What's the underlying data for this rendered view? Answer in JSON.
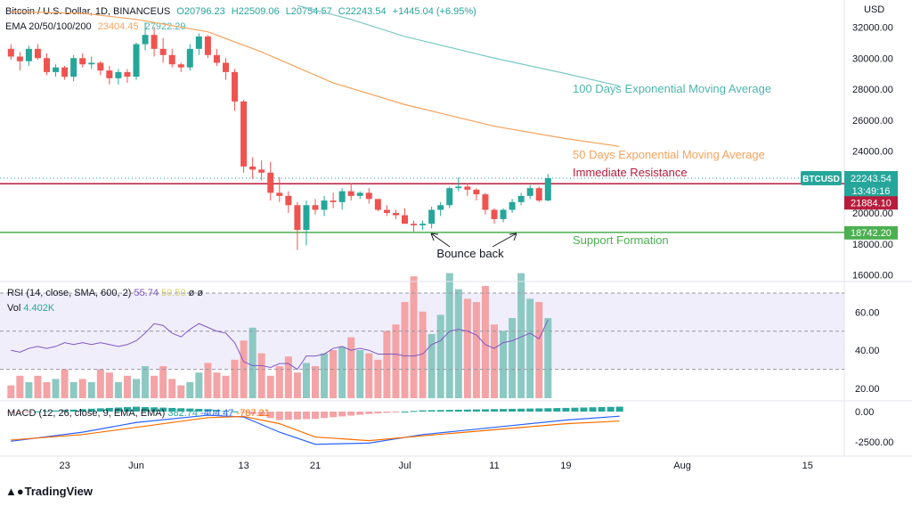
{
  "header": {
    "title": "Bitcoin / U.S. Dollar, 1D, BINANCEUS",
    "ohlc": {
      "o": "O20796.23",
      "h": "H22509.06",
      "l": "L20754.57",
      "c": "C22243.54",
      "chg": "+1445.04 (+6.95%)"
    },
    "ema_label": "EMA 20/50/100/200",
    "ema_values": [
      "23404.45",
      "27922.29"
    ]
  },
  "currency": "USD",
  "price_axis": {
    "ticks": [
      "32000.00",
      "30000.00",
      "28000.00",
      "26000.00",
      "24000.00",
      "22000.00",
      "20000.00",
      "18000.00",
      "16000.00"
    ],
    "tick_values": [
      32000,
      30000,
      28000,
      26000,
      24000,
      22000,
      20000,
      18000,
      16000
    ]
  },
  "price_tags": {
    "symbol": "BTCUSD",
    "last": "22243.54",
    "countdown": "13:49:16",
    "resistance": "21884.10",
    "support": "18742.20"
  },
  "levels": {
    "resistance": 21884.1,
    "support": 18742.2
  },
  "annotations": {
    "ema100": "100 Days Exponential Moving Average",
    "ema50": "50 Days Exponential Moving Average",
    "resistance": "Immediate Resistance",
    "support": "Support Formation",
    "bounce": "Bounce back"
  },
  "rsi_panel": {
    "label": "RSI (14, close, SMA, 600, 2)",
    "v1": "55.74",
    "v2": "50.50",
    "v3": "ø",
    "v4": "ø",
    "vol_label": "Vol",
    "vol_value": "4.402K",
    "ticks": [
      "60.00",
      "40.00",
      "20.00"
    ],
    "tick_values": [
      60,
      40,
      20
    ]
  },
  "macd_panel": {
    "label": "MACD (12, 26, close, 9, EMA, EMA)",
    "v1": "382.74",
    "v2": "-404.47",
    "v3": "-787.21",
    "ticks": [
      "0.00",
      "-2500.00"
    ],
    "tick_values": [
      0,
      -2500
    ]
  },
  "time_axis": {
    "labels": [
      "23",
      "Jun",
      "13",
      "21",
      "Jul",
      "11",
      "19",
      "Aug",
      "15"
    ],
    "day_index": [
      -8,
      0,
      12,
      20,
      30,
      40,
      48,
      61,
      75
    ]
  },
  "colors": {
    "up": "#26a69a",
    "down": "#ef5350",
    "resistance": "#b71c3c",
    "support": "#4caf50",
    "ema50": "#f7a35c",
    "ema100": "#7ec8c8",
    "rsi": "#7e57c2",
    "macd": "#2962ff",
    "signal": "#ff6d00",
    "vol_up": "#8cc9c3",
    "vol_down": "#f4a3a6"
  },
  "brand": "TradingView",
  "chart_data": [
    {
      "type": "candlestick",
      "title": "Bitcoin / U.S. Dollar, 1D, BINANCEUS",
      "x_start_day": -14,
      "ohlc": [
        [
          30600,
          30900,
          29900,
          30100
        ],
        [
          30100,
          30400,
          29200,
          29800
        ],
        [
          29800,
          30800,
          29500,
          30600
        ],
        [
          30600,
          30900,
          29900,
          30000
        ],
        [
          30000,
          30300,
          28900,
          29100
        ],
        [
          29100,
          29600,
          28800,
          29400
        ],
        [
          29400,
          29500,
          28600,
          28800
        ],
        [
          28800,
          30200,
          28500,
          30000
        ],
        [
          30000,
          30300,
          29400,
          29600
        ],
        [
          29600,
          30100,
          29300,
          29700
        ],
        [
          29700,
          29800,
          28900,
          29200
        ],
        [
          29200,
          29500,
          28300,
          28700
        ],
        [
          28700,
          29300,
          28300,
          29100
        ],
        [
          29100,
          29300,
          28400,
          28800
        ],
        [
          28800,
          31000,
          28600,
          30900
        ],
        [
          30900,
          32300,
          30500,
          31500
        ],
        [
          31500,
          32000,
          30100,
          30600
        ],
        [
          30600,
          31300,
          29700,
          30200
        ],
        [
          30200,
          30600,
          29400,
          29600
        ],
        [
          29600,
          29700,
          29100,
          29400
        ],
        [
          29400,
          30900,
          29200,
          30600
        ],
        [
          30600,
          31600,
          30200,
          31400
        ],
        [
          31400,
          31500,
          30000,
          30200
        ],
        [
          30200,
          30600,
          29500,
          29700
        ],
        [
          29700,
          30000,
          28600,
          29100
        ],
        [
          29100,
          29300,
          26600,
          27200
        ],
        [
          27200,
          27300,
          22600,
          23000
        ],
        [
          23000,
          23600,
          22200,
          22800
        ],
        [
          22800,
          23400,
          22100,
          22600
        ],
        [
          22600,
          23300,
          20800,
          21300
        ],
        [
          21300,
          22300,
          20700,
          21100
        ],
        [
          21100,
          21400,
          20000,
          20500
        ],
        [
          20500,
          20700,
          17600,
          18900
        ],
        [
          18900,
          20800,
          17900,
          20500
        ],
        [
          20500,
          20900,
          19900,
          20200
        ],
        [
          20200,
          21100,
          19800,
          20800
        ],
        [
          20800,
          21300,
          20300,
          20700
        ],
        [
          20700,
          21600,
          20200,
          21400
        ],
        [
          21400,
          21900,
          20800,
          21100
        ],
        [
          21100,
          21400,
          20900,
          21300
        ],
        [
          21300,
          21600,
          20600,
          20900
        ],
        [
          20900,
          20900,
          20100,
          20200
        ],
        [
          20200,
          20500,
          19800,
          20000
        ],
        [
          20000,
          20200,
          19600,
          19850
        ],
        [
          19850,
          20300,
          19400,
          19300
        ],
        [
          19300,
          19500,
          18800,
          19200
        ],
        [
          19200,
          19500,
          18900,
          19300
        ],
        [
          19300,
          20400,
          19000,
          20200
        ],
        [
          20200,
          20700,
          19800,
          20500
        ],
        [
          20500,
          21700,
          20300,
          21600
        ],
        [
          21600,
          22300,
          21400,
          21700
        ],
        [
          21700,
          21900,
          21100,
          21500
        ],
        [
          21500,
          21600,
          20800,
          21200
        ],
        [
          21200,
          21300,
          19900,
          20200
        ],
        [
          20200,
          20300,
          19300,
          19600
        ],
        [
          19600,
          20300,
          19400,
          20200
        ],
        [
          20200,
          20900,
          20000,
          20700
        ],
        [
          20700,
          21300,
          20500,
          21100
        ],
        [
          21100,
          21800,
          20900,
          21600
        ],
        [
          21600,
          21700,
          20700,
          20800
        ],
        [
          20800,
          22509,
          20754,
          22243
        ]
      ]
    },
    {
      "type": "line",
      "title": "EMA 20/50/100/200",
      "x_start_day": -14,
      "series": [
        {
          "name": "50 Days Exponential Moving Average",
          "points": [
            [
              -14,
              33000
            ],
            [
              -6,
              32900
            ],
            [
              0,
              32500
            ],
            [
              8,
              31700
            ],
            [
              14,
              30400
            ],
            [
              22,
              28400
            ],
            [
              30,
              27000
            ],
            [
              40,
              25600
            ],
            [
              48,
              24800
            ],
            [
              54,
              24300
            ]
          ]
        },
        {
          "name": "100 Days Exponential Moving Average",
          "points": [
            [
              18,
              33400
            ],
            [
              24,
              32500
            ],
            [
              30,
              31400
            ],
            [
              40,
              30000
            ],
            [
              48,
              29000
            ],
            [
              54,
              28200
            ]
          ]
        }
      ]
    },
    {
      "type": "bar",
      "title": "Vol",
      "x_start_day": -14,
      "values": [
        21,
        24,
        22,
        24,
        22,
        23,
        26,
        22,
        23,
        22,
        26,
        25,
        22,
        24,
        23,
        27,
        24,
        27,
        23,
        21,
        22,
        25,
        28,
        25,
        24,
        29,
        35,
        39,
        31,
        24,
        27,
        30,
        25,
        28,
        27,
        31,
        32,
        33,
        36,
        32,
        31,
        29,
        38,
        40,
        47,
        55,
        44,
        37,
        43,
        56,
        51,
        48,
        47,
        52,
        40,
        38,
        42,
        56,
        48,
        47,
        42
      ],
      "up": [
        0,
        0,
        1,
        0,
        0,
        1,
        0,
        1,
        0,
        1,
        0,
        0,
        1,
        0,
        1,
        1,
        0,
        0,
        0,
        0,
        1,
        1,
        0,
        0,
        0,
        0,
        0,
        1,
        0,
        0,
        0,
        0,
        0,
        1,
        0,
        1,
        0,
        1,
        0,
        1,
        0,
        0,
        0,
        0,
        0,
        0,
        0,
        1,
        1,
        1,
        1,
        0,
        0,
        0,
        0,
        1,
        1,
        1,
        1,
        0,
        1
      ]
    },
    {
      "type": "line",
      "title": "RSI (14, close, SMA, 600, 2)",
      "x_start_day": -14,
      "ylim": [
        15,
        70
      ],
      "y": [
        40,
        39,
        41,
        42,
        41,
        42,
        44,
        43,
        44,
        43,
        44,
        43,
        42,
        43,
        45,
        49,
        54,
        53,
        49,
        47,
        51,
        54,
        52,
        50,
        49,
        44,
        34,
        32,
        32,
        31,
        33,
        33,
        30,
        37,
        37,
        38,
        41,
        42,
        40,
        41,
        40,
        38,
        38,
        38,
        37,
        37,
        38,
        43,
        45,
        50,
        51,
        50,
        48,
        43,
        41,
        44,
        45,
        47,
        49,
        46,
        56
      ]
    },
    {
      "type": "line",
      "title": "MACD (12, 26, close, 9, EMA, EMA)",
      "x_start_day": -14,
      "series": [
        {
          "name": "MACD",
          "points": [
            [
              -14,
              -2450
            ],
            [
              -6,
              -1700
            ],
            [
              0,
              -900
            ],
            [
              8,
              -300
            ],
            [
              12,
              -450
            ],
            [
              16,
              -1700
            ],
            [
              20,
              -2700
            ],
            [
              26,
              -2600
            ],
            [
              32,
              -1900
            ],
            [
              40,
              -1300
            ],
            [
              48,
              -700
            ],
            [
              54,
              -382
            ]
          ]
        },
        {
          "name": "Signal",
          "points": [
            [
              -14,
              -2350
            ],
            [
              -6,
              -1900
            ],
            [
              0,
              -1300
            ],
            [
              8,
              -500
            ],
            [
              12,
              -400
            ],
            [
              16,
              -1000
            ],
            [
              20,
              -2100
            ],
            [
              26,
              -2400
            ],
            [
              32,
              -2000
            ],
            [
              40,
              -1500
            ],
            [
              48,
              -1000
            ],
            [
              54,
              -787
            ]
          ]
        }
      ]
    }
  ]
}
